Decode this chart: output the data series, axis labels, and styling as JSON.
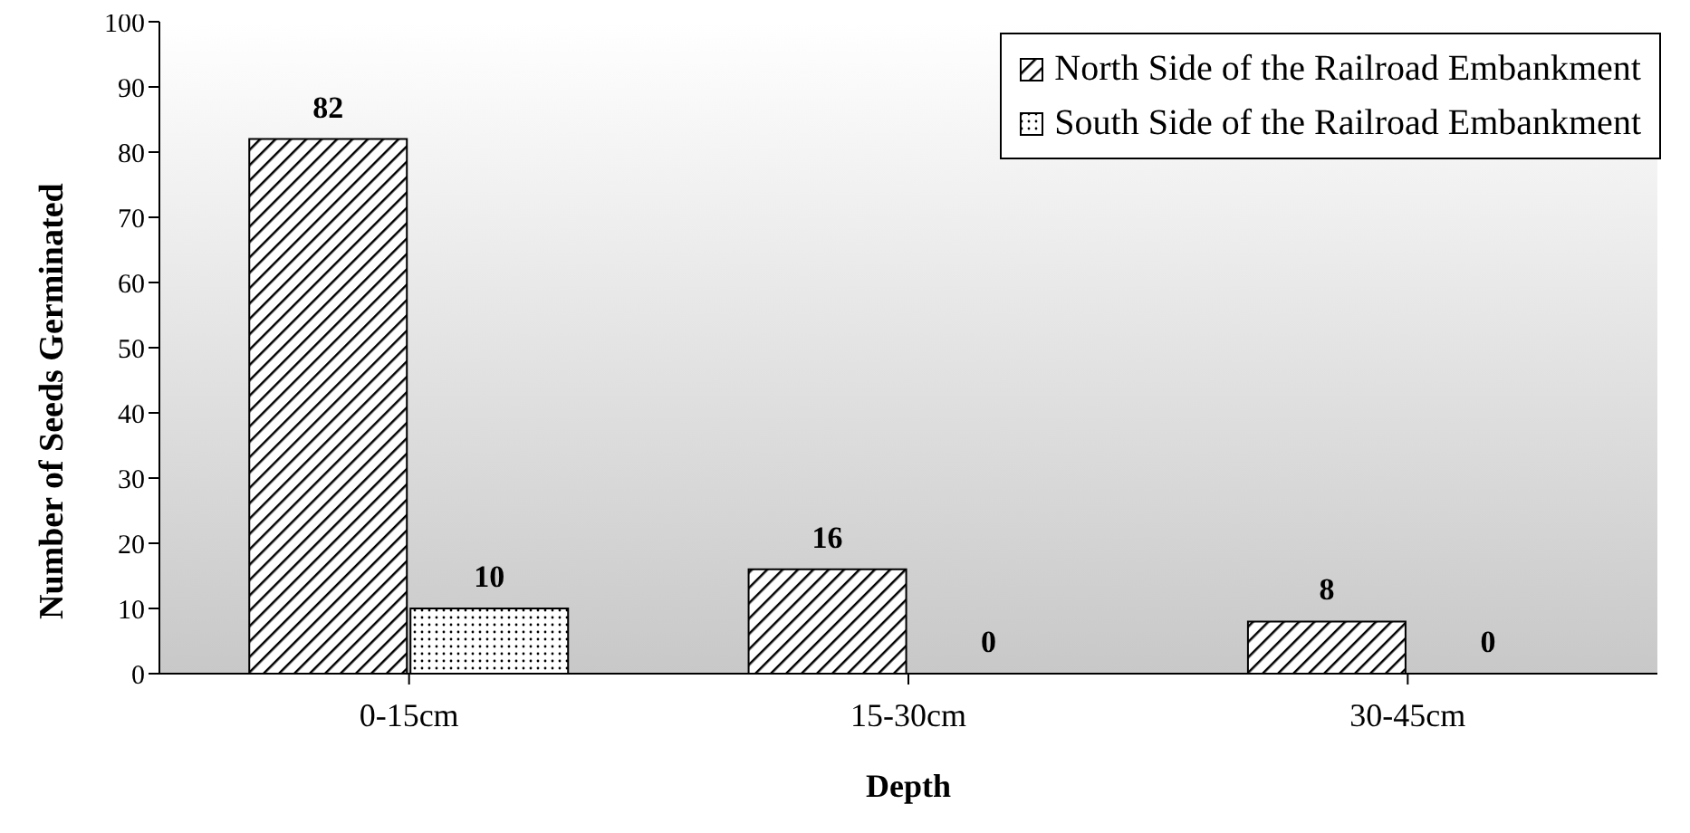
{
  "chart_data": {
    "type": "bar",
    "xlabel": "Depth",
    "ylabel": "Number of Seeds Germinated",
    "categories": [
      "0-15cm",
      "15-30cm",
      "30-45cm"
    ],
    "series": [
      {
        "name": "North Side of the Railroad Embankment",
        "color": "#000000",
        "values": [
          82,
          16,
          8
        ]
      },
      {
        "name": "South Side of the Railroad Embankment",
        "color": "#000000",
        "values": [
          10,
          0,
          0
        ]
      }
    ],
    "ylim": [
      0,
      100
    ],
    "yticks": [
      0,
      10,
      20,
      30,
      40,
      50,
      60,
      70,
      80,
      90,
      100
    ],
    "data_labels": true,
    "legend": "top right"
  }
}
